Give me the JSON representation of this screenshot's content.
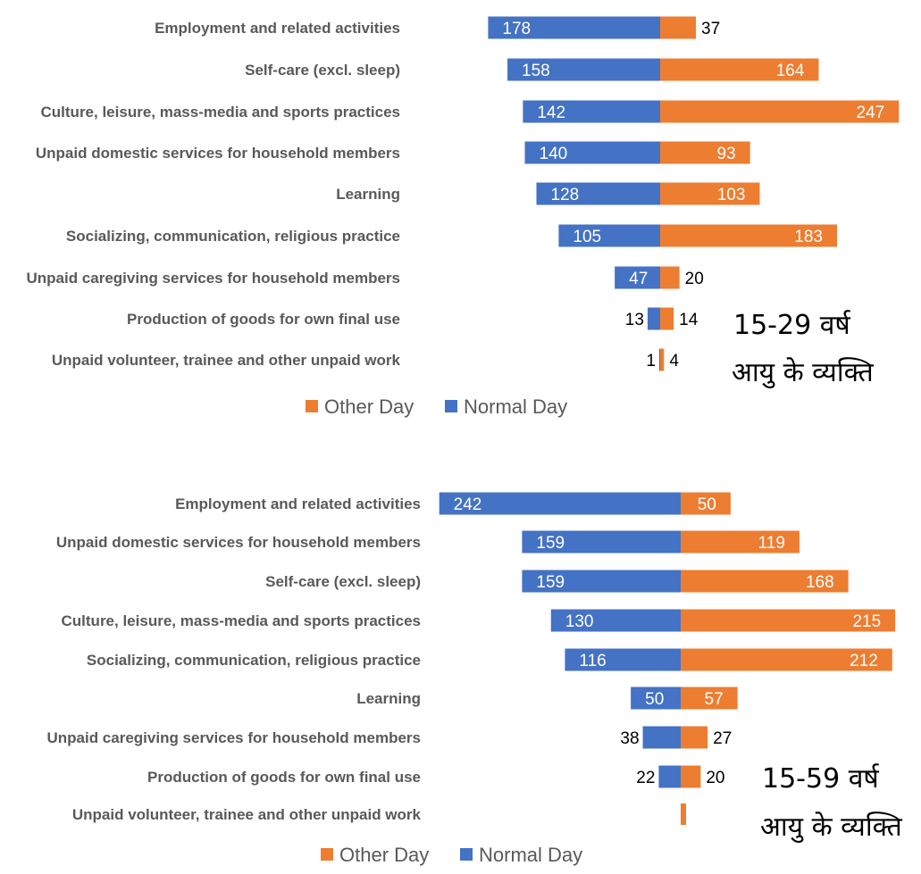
{
  "colors": {
    "normal": "#4472C4",
    "other": "#ED7D31",
    "category_text": "#595959",
    "legend_text": "#595959"
  },
  "chart_data": [
    {
      "type": "bar",
      "orientation": "horizontal-diverging",
      "annotation": [
        "15-29 वर्ष",
        "आयु के व्यक्ति"
      ],
      "legend": [
        "Other Day",
        "Normal Day"
      ],
      "categories": [
        "Employment and related activities",
        "Self-care (excl. sleep)",
        "Culture, leisure, mass-media and sports practices",
        "Unpaid domestic services for household members",
        "Learning",
        "Socializing, communication, religious practice",
        "Unpaid caregiving services for household members",
        "Production of goods for own final use",
        "Unpaid volunteer, trainee and other unpaid work"
      ],
      "series": [
        {
          "name": "Normal Day",
          "values": [
            178,
            158,
            142,
            140,
            128,
            105,
            47,
            13,
            1
          ]
        },
        {
          "name": "Other Day",
          "values": [
            37,
            164,
            247,
            93,
            103,
            183,
            20,
            14,
            4
          ]
        }
      ]
    },
    {
      "type": "bar",
      "orientation": "horizontal-diverging",
      "annotation": [
        "15-59 वर्ष",
        "आयु के व्यक्ति"
      ],
      "legend": [
        "Other Day",
        "Normal Day"
      ],
      "categories": [
        "Employment and related activities",
        "Unpaid domestic services for household members",
        "Self-care (excl. sleep)",
        "Culture, leisure, mass-media and sports practices",
        "Socializing, communication, religious practice",
        "Learning",
        "Unpaid caregiving services for household members",
        "Production of goods for own final use",
        "Unpaid volunteer, trainee and other unpaid work"
      ],
      "series": [
        {
          "name": "Normal Day",
          "values": [
            242,
            159,
            159,
            130,
            116,
            50,
            38,
            22,
            null
          ]
        },
        {
          "name": "Other Day",
          "values": [
            50,
            119,
            168,
            215,
            212,
            57,
            27,
            20,
            null
          ]
        }
      ]
    }
  ]
}
